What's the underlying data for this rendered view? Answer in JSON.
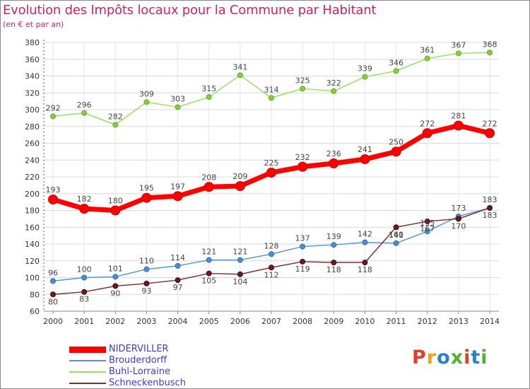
{
  "title": "Evolution des Impôts locaux pour la Commune par Habitant",
  "subtitle": "(en € et par an)",
  "logo": {
    "text": "Proxiti",
    "colors": [
      "#e0402a",
      "#f0a020",
      "#2a7fd0",
      "#50b030",
      "#e0402a",
      "#2a7fd0",
      "#50b030"
    ]
  },
  "chart_data": {
    "type": "line",
    "title": "Evolution des Impôts locaux pour la Commune par Habitant",
    "subtitle": "(en € et par an)",
    "x": [
      "2000",
      "2001",
      "2002",
      "2003",
      "2004",
      "2005",
      "2006",
      "2007",
      "2008",
      "2009",
      "2010",
      "2011",
      "2012",
      "2013",
      "2014"
    ],
    "ylim": [
      60,
      380
    ],
    "yticks": [
      60,
      80,
      100,
      120,
      140,
      160,
      180,
      200,
      220,
      240,
      260,
      280,
      300,
      320,
      340,
      360,
      380
    ],
    "grid": true,
    "legend_position": "bottom-left",
    "series": [
      {
        "name": "NIDERVILLER",
        "color": "#ff0000",
        "values": [
          193,
          182,
          180,
          195,
          197,
          208,
          209,
          225,
          232,
          236,
          241,
          250,
          272,
          281,
          272
        ]
      },
      {
        "name": "Brouderdorff",
        "color": "#5599cc",
        "values": [
          96,
          100,
          101,
          110,
          114,
          121,
          121,
          128,
          137,
          139,
          142,
          141,
          155,
          173,
          183
        ]
      },
      {
        "name": "Buhl-Lorraine",
        "color": "#99dd66",
        "values": [
          292,
          296,
          282,
          309,
          303,
          315,
          341,
          314,
          325,
          322,
          339,
          346,
          361,
          367,
          368
        ]
      },
      {
        "name": "Schneckenbusch",
        "color": "#773333",
        "values": [
          80,
          83,
          90,
          93,
          97,
          105,
          104,
          112,
          119,
          118,
          118,
          160,
          167,
          170,
          183
        ]
      }
    ]
  }
}
